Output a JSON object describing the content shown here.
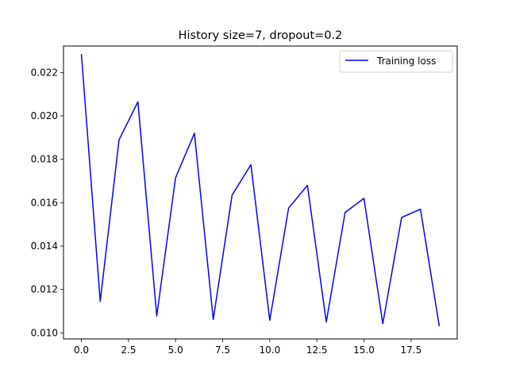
{
  "chart_data": {
    "type": "line",
    "title": "History size=7, dropout=0.2",
    "xlabel": "",
    "ylabel": "",
    "xlim": [
      -0.95,
      19.95
    ],
    "ylim": [
      0.00972,
      0.02322
    ],
    "xticks": [
      0.0,
      2.5,
      5.0,
      7.5,
      10.0,
      12.5,
      15.0,
      17.5
    ],
    "xtick_labels": [
      "0.0",
      "2.5",
      "5.0",
      "7.5",
      "10.0",
      "12.5",
      "15.0",
      "17.5"
    ],
    "yticks": [
      0.01,
      0.012,
      0.014,
      0.016,
      0.018,
      0.02,
      0.022
    ],
    "ytick_labels": [
      "0.010",
      "0.012",
      "0.014",
      "0.016",
      "0.018",
      "0.020",
      "0.022"
    ],
    "grid": false,
    "legend_position": "top-right",
    "series": [
      {
        "name": "Training loss",
        "color": "#0000ff",
        "x": [
          0,
          1,
          2,
          3,
          4,
          5,
          6,
          7,
          8,
          9,
          10,
          11,
          12,
          13,
          14,
          15,
          16,
          17,
          18,
          19
        ],
        "y": [
          0.02285,
          0.01145,
          0.0189,
          0.02065,
          0.01078,
          0.01715,
          0.0192,
          0.01062,
          0.01635,
          0.01775,
          0.01058,
          0.01575,
          0.0168,
          0.0105,
          0.01555,
          0.0162,
          0.01042,
          0.01532,
          0.0157,
          0.0103
        ]
      }
    ]
  }
}
